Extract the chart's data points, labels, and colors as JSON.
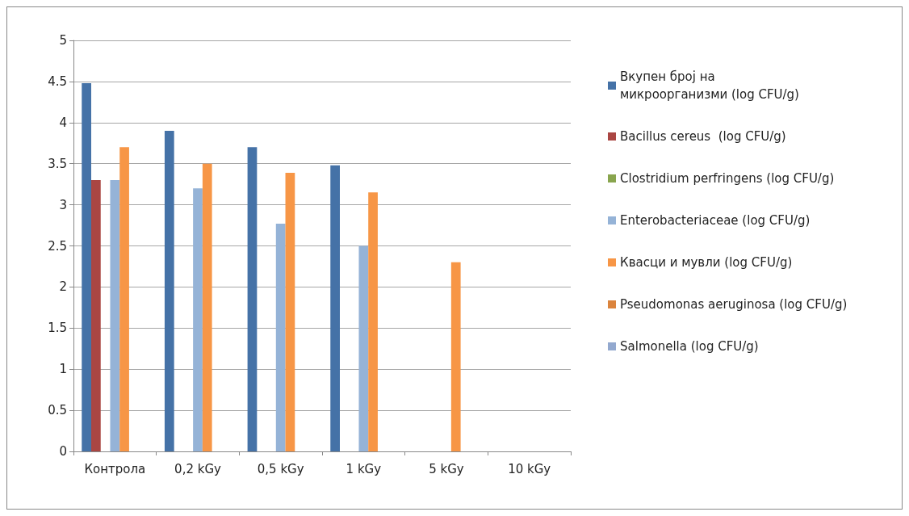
{
  "chart_data": {
    "type": "bar",
    "categories": [
      "Контрола",
      "0,2 kGy",
      "0,5 kGy",
      "1 kGy",
      "5 kGy",
      "10 kGy"
    ],
    "series": [
      {
        "name": "Вкупен број на микроорганизми (log CFU/g)",
        "color": "#4572a7",
        "values": [
          4.48,
          3.9,
          3.7,
          3.48,
          null,
          null
        ]
      },
      {
        "name": "Bacillus cereus  (log CFU/g)",
        "color": "#aa4643",
        "values": [
          3.3,
          null,
          null,
          null,
          null,
          null
        ]
      },
      {
        "name": "Clostridium perfringens (log CFU/g)",
        "color": "#89a54e",
        "values": [
          null,
          null,
          null,
          null,
          null,
          null
        ]
      },
      {
        "name": "Enterobacteriaceae (log CFU/g)",
        "color": "#95b3d7",
        "values": [
          3.3,
          3.2,
          2.77,
          2.5,
          null,
          null
        ]
      },
      {
        "name": "Квасци и мувли (log CFU/g)",
        "color": "#f79646",
        "values": [
          3.7,
          3.5,
          3.39,
          3.15,
          2.3,
          null
        ]
      },
      {
        "name": "Pseudomonas aeruginosa (log CFU/g)",
        "color": "#db843d",
        "values": [
          null,
          null,
          null,
          null,
          null,
          null
        ]
      },
      {
        "name": "Salmonella (log CFU/g)",
        "color": "#93a9cf",
        "values": [
          null,
          null,
          null,
          null,
          null,
          null
        ]
      }
    ],
    "ylim": [
      0,
      5
    ],
    "yticks": [
      0,
      0.5,
      1,
      1.5,
      2,
      2.5,
      3,
      3.5,
      4,
      4.5,
      5
    ],
    "grid": "y",
    "legend": "right"
  }
}
